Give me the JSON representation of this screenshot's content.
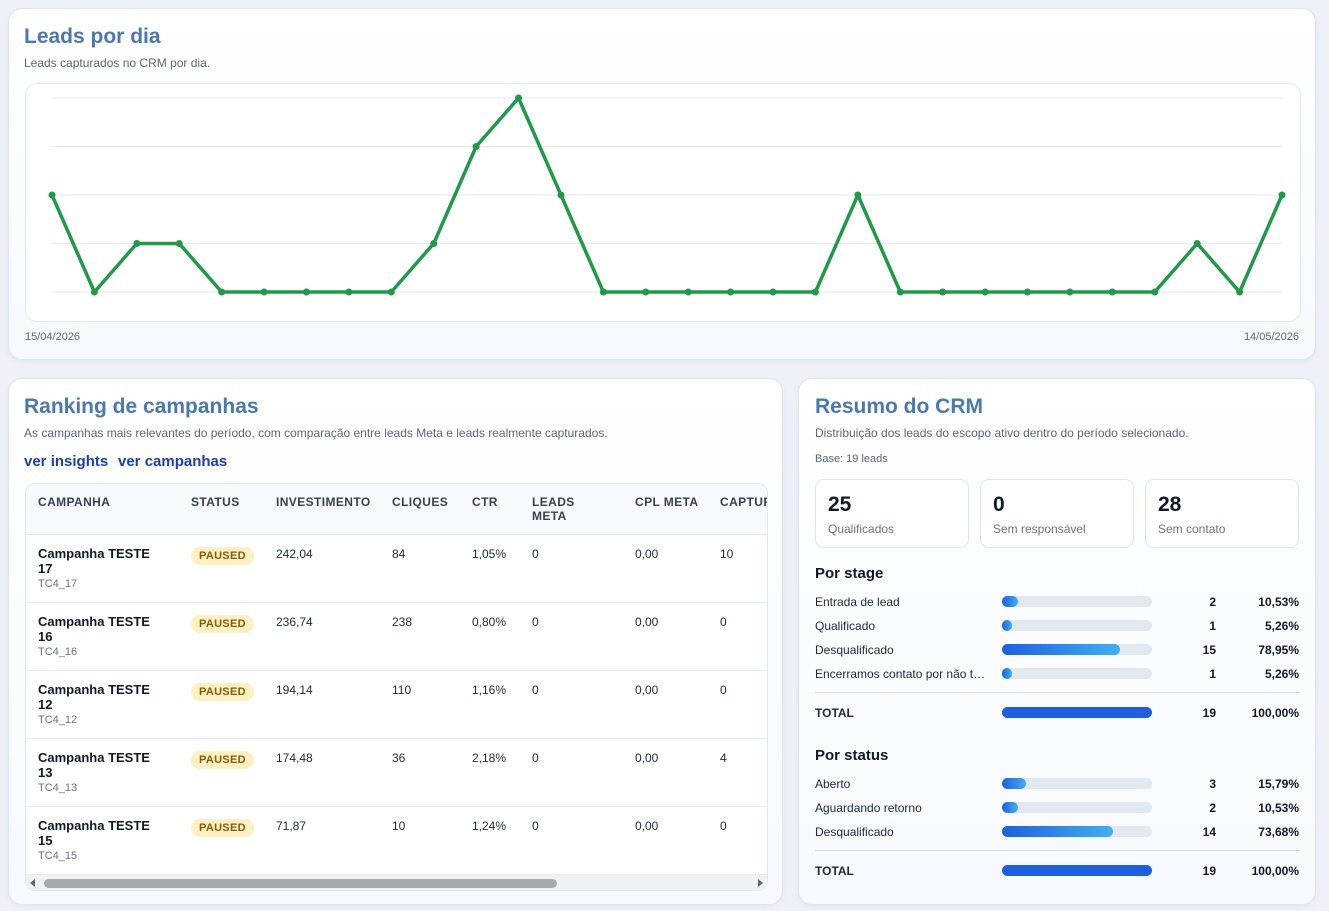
{
  "chart_data": {
    "type": "line",
    "title": "Leads por dia",
    "subtitle": "Leads capturados no CRM por dia.",
    "categories": [
      "15/04/2026",
      null,
      null,
      null,
      null,
      null,
      null,
      null,
      null,
      null,
      null,
      null,
      null,
      null,
      null,
      null,
      null,
      null,
      null,
      null,
      null,
      null,
      null,
      null,
      null,
      null,
      null,
      null,
      null,
      "14/05/2026"
    ],
    "values": [
      2,
      0,
      1,
      1,
      0,
      0,
      0,
      0,
      0,
      1,
      3,
      4,
      2,
      0,
      0,
      0,
      0,
      0,
      0,
      2,
      0,
      0,
      0,
      0,
      0,
      0,
      0,
      1,
      0,
      2
    ],
    "color": "#1e9a4a",
    "ylim": [
      0,
      4
    ],
    "yticks": [
      0,
      1,
      2,
      3,
      4
    ],
    "grid": true
  },
  "ranking": {
    "title": "Ranking de campanhas",
    "subtitle": "As campanhas mais relevantes do período, com comparação entre leads Meta e leads realmente capturados.",
    "links": [
      "ver insights",
      "ver campanhas"
    ],
    "columns": [
      "CAMPANHA",
      "STATUS",
      "INVESTIMENTO",
      "CLIQUES",
      "CTR",
      "LEADS META",
      "CPL META",
      "CAPTURADOS"
    ],
    "rows": [
      {
        "name": "Campanha TESTE 17",
        "code": "TC4_17",
        "cells": [
          "PAUSED",
          "242,04",
          "84",
          "1,05%",
          "0",
          "0,00",
          "10"
        ]
      },
      {
        "name": "Campanha TESTE 16",
        "code": "TC4_16",
        "cells": [
          "PAUSED",
          "236,74",
          "238",
          "0,80%",
          "0",
          "0,00",
          "0"
        ]
      },
      {
        "name": "Campanha TESTE 12",
        "code": "TC4_12",
        "cells": [
          "PAUSED",
          "194,14",
          "110",
          "1,16%",
          "0",
          "0,00",
          "0"
        ]
      },
      {
        "name": "Campanha TESTE 13",
        "code": "TC4_13",
        "cells": [
          "PAUSED",
          "174,48",
          "36",
          "2,18%",
          "0",
          "0,00",
          "4"
        ]
      },
      {
        "name": "Campanha TESTE 15",
        "code": "TC4_15",
        "cells": [
          "PAUSED",
          "71,87",
          "10",
          "1,24%",
          "0",
          "0,00",
          "0"
        ]
      }
    ]
  },
  "crm": {
    "title": "Resumo do CRM",
    "subtitle": "Distribuição dos leads do escopo ativo dentro do período selecionado.",
    "base": "Base: 19 leads",
    "stats": [
      {
        "value": 25,
        "label": "Qualificados"
      },
      {
        "value": 0,
        "label": "Sem responsável"
      },
      {
        "value": 28,
        "label": "Sem contato"
      }
    ],
    "groups": [
      {
        "title": "Por stage",
        "rows": [
          {
            "label": "Entrada de lead",
            "count": 2,
            "pct": 10.53,
            "pct_label": "10,53%"
          },
          {
            "label": "Qualificado",
            "count": 1,
            "pct": 5.26,
            "pct_label": "5,26%"
          },
          {
            "label": "Desqualificado",
            "count": 15,
            "pct": 78.95,
            "pct_label": "78,95%"
          },
          {
            "label": "Encerramos contato por não t…",
            "count": 1,
            "pct": 5.26,
            "pct_label": "5,26%"
          }
        ],
        "total": {
          "label": "TOTAL",
          "count": 19,
          "pct": 100,
          "pct_label": "100,00%"
        }
      },
      {
        "title": "Por status",
        "rows": [
          {
            "label": "Aberto",
            "count": 3,
            "pct": 15.79,
            "pct_label": "15,79%"
          },
          {
            "label": "Aguardando retorno",
            "count": 2,
            "pct": 10.53,
            "pct_label": "10,53%"
          },
          {
            "label": "Desqualificado",
            "count": 14,
            "pct": 73.68,
            "pct_label": "73,68%"
          }
        ],
        "total": {
          "label": "TOTAL",
          "count": 19,
          "pct": 100,
          "pct_label": "100,00%"
        }
      }
    ]
  }
}
